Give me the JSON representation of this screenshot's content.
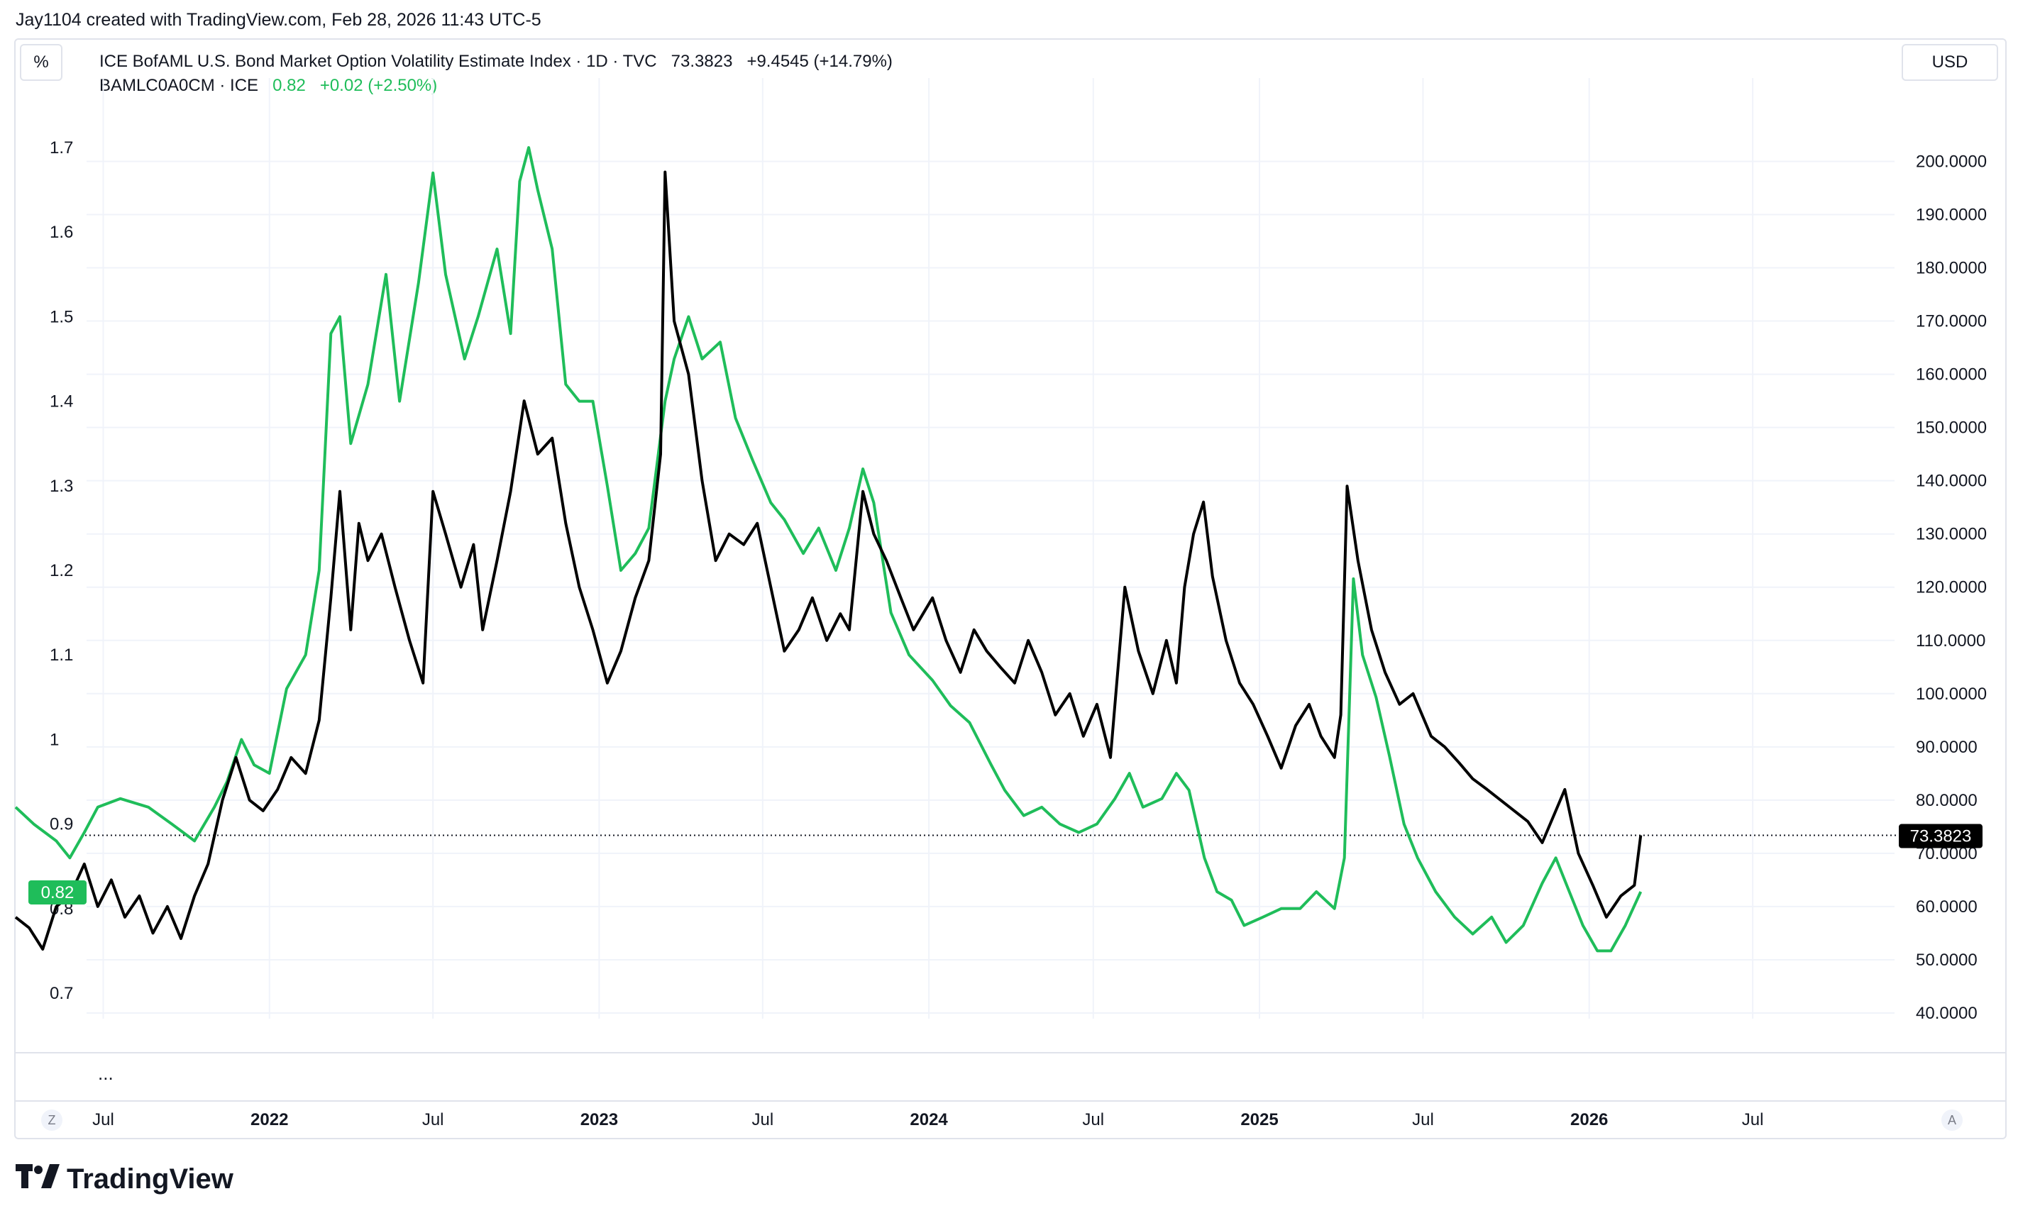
{
  "credit": "Jay1104 created with TradingView.com, Feb 28, 2026 11:43 UTC-5",
  "scale_mode_label": "%",
  "currency_label": "USD",
  "legend": {
    "move_main": {
      "name": "ICE BofAML U.S. Bond Market Option Volatility Estimate Index · 1D · TVC",
      "value": "73.3823",
      "change": "+9.4545 (+14.79%)"
    },
    "credit_spread": {
      "name": "BAMLC0A0CM · ICE",
      "value": "0.82",
      "change": "+0.02 (+2.50%)"
    }
  },
  "more_label": "...",
  "z_label": "Z",
  "a_label": "A",
  "brand": "TradingView",
  "chart_data": {
    "type": "line",
    "left_axis": {
      "ticks": [
        "1.7",
        "1.6",
        "1.5",
        "1.4",
        "1.3",
        "1.2",
        "1.1",
        "1",
        "0.9",
        "0.8",
        "0.7"
      ],
      "range": [
        0.65,
        1.75
      ]
    },
    "right_axis": {
      "ticks": [
        "200.0000",
        "190.0000",
        "180.0000",
        "170.0000",
        "160.0000",
        "150.0000",
        "140.0000",
        "130.0000",
        "120.0000",
        "110.0000",
        "100.0000",
        "90.0000",
        "80.0000",
        "70.0000",
        "60.0000",
        "50.0000",
        "40.0000"
      ],
      "range": [
        35,
        202
      ]
    },
    "x_ticks": [
      {
        "label": "Jul",
        "date": "2021-07-01",
        "bold": false
      },
      {
        "label": "2022",
        "date": "2022-01-01",
        "bold": true
      },
      {
        "label": "Jul",
        "date": "2022-07-01",
        "bold": false
      },
      {
        "label": "2023",
        "date": "2023-01-01",
        "bold": true
      },
      {
        "label": "Jul",
        "date": "2023-07-01",
        "bold": false
      },
      {
        "label": "2024",
        "date": "2024-01-01",
        "bold": true
      },
      {
        "label": "Jul",
        "date": "2024-07-01",
        "bold": false
      },
      {
        "label": "2025",
        "date": "2025-01-01",
        "bold": true
      },
      {
        "label": "Jul",
        "date": "2025-07-01",
        "bold": false
      },
      {
        "label": "2026",
        "date": "2026-01-01",
        "bold": true
      },
      {
        "label": "Jul",
        "date": "2026-07-01",
        "bold": false
      }
    ],
    "x_range": [
      "2021-03-26",
      "2026-12-05"
    ],
    "price_line_value": 73.3823,
    "last_label_right": "73.3823",
    "last_label_left": "0.82",
    "colors": {
      "move": "#000000",
      "spread": "#1fbd5a",
      "grid": "#f0f3fa"
    },
    "series": [
      {
        "name": "BAMLC0A0CM",
        "axis": "left",
        "color": "#1fbd5a",
        "points": [
          [
            "2021-03-26",
            0.92
          ],
          [
            "2021-04-15",
            0.9
          ],
          [
            "2021-05-10",
            0.88
          ],
          [
            "2021-05-25",
            0.86
          ],
          [
            "2021-06-10",
            0.89
          ],
          [
            "2021-06-25",
            0.92
          ],
          [
            "2021-07-20",
            0.93
          ],
          [
            "2021-08-20",
            0.92
          ],
          [
            "2021-09-15",
            0.9
          ],
          [
            "2021-10-10",
            0.88
          ],
          [
            "2021-11-01",
            0.92
          ],
          [
            "2021-11-15",
            0.95
          ],
          [
            "2021-12-01",
            1.0
          ],
          [
            "2021-12-15",
            0.97
          ],
          [
            "2022-01-01",
            0.96
          ],
          [
            "2022-01-20",
            1.06
          ],
          [
            "2022-02-10",
            1.1
          ],
          [
            "2022-02-25",
            1.2
          ],
          [
            "2022-03-10",
            1.48
          ],
          [
            "2022-03-20",
            1.5
          ],
          [
            "2022-04-01",
            1.35
          ],
          [
            "2022-04-20",
            1.42
          ],
          [
            "2022-05-10",
            1.55
          ],
          [
            "2022-05-25",
            1.4
          ],
          [
            "2022-06-15",
            1.54
          ],
          [
            "2022-07-01",
            1.67
          ],
          [
            "2022-07-15",
            1.55
          ],
          [
            "2022-08-05",
            1.45
          ],
          [
            "2022-08-20",
            1.5
          ],
          [
            "2022-09-10",
            1.58
          ],
          [
            "2022-09-25",
            1.48
          ],
          [
            "2022-10-05",
            1.66
          ],
          [
            "2022-10-15",
            1.7
          ],
          [
            "2022-10-25",
            1.65
          ],
          [
            "2022-11-10",
            1.58
          ],
          [
            "2022-11-25",
            1.42
          ],
          [
            "2022-12-10",
            1.4
          ],
          [
            "2022-12-25",
            1.4
          ],
          [
            "2023-01-10",
            1.3
          ],
          [
            "2023-01-25",
            1.2
          ],
          [
            "2023-02-10",
            1.22
          ],
          [
            "2023-02-25",
            1.25
          ],
          [
            "2023-03-15",
            1.4
          ],
          [
            "2023-03-25",
            1.45
          ],
          [
            "2023-04-10",
            1.5
          ],
          [
            "2023-04-25",
            1.45
          ],
          [
            "2023-05-15",
            1.47
          ],
          [
            "2023-06-01",
            1.38
          ],
          [
            "2023-06-20",
            1.33
          ],
          [
            "2023-07-10",
            1.28
          ],
          [
            "2023-07-25",
            1.26
          ],
          [
            "2023-08-15",
            1.22
          ],
          [
            "2023-09-01",
            1.25
          ],
          [
            "2023-09-20",
            1.2
          ],
          [
            "2023-10-05",
            1.25
          ],
          [
            "2023-10-20",
            1.32
          ],
          [
            "2023-11-01",
            1.28
          ],
          [
            "2023-11-20",
            1.15
          ],
          [
            "2023-12-10",
            1.1
          ],
          [
            "2024-01-05",
            1.07
          ],
          [
            "2024-01-25",
            1.04
          ],
          [
            "2024-02-15",
            1.02
          ],
          [
            "2024-03-10",
            0.97
          ],
          [
            "2024-03-25",
            0.94
          ],
          [
            "2024-04-15",
            0.91
          ],
          [
            "2024-05-05",
            0.92
          ],
          [
            "2024-05-25",
            0.9
          ],
          [
            "2024-06-15",
            0.89
          ],
          [
            "2024-07-05",
            0.9
          ],
          [
            "2024-07-25",
            0.93
          ],
          [
            "2024-08-10",
            0.96
          ],
          [
            "2024-08-25",
            0.92
          ],
          [
            "2024-09-15",
            0.93
          ],
          [
            "2024-10-01",
            0.96
          ],
          [
            "2024-10-15",
            0.94
          ],
          [
            "2024-11-01",
            0.86
          ],
          [
            "2024-11-15",
            0.82
          ],
          [
            "2024-12-01",
            0.81
          ],
          [
            "2024-12-15",
            0.78
          ],
          [
            "2025-01-05",
            0.79
          ],
          [
            "2025-01-25",
            0.8
          ],
          [
            "2025-02-15",
            0.8
          ],
          [
            "2025-03-05",
            0.82
          ],
          [
            "2025-03-25",
            0.8
          ],
          [
            "2025-04-05",
            0.86
          ],
          [
            "2025-04-15",
            1.19
          ],
          [
            "2025-04-25",
            1.1
          ],
          [
            "2025-05-10",
            1.05
          ],
          [
            "2025-05-25",
            0.98
          ],
          [
            "2025-06-10",
            0.9
          ],
          [
            "2025-06-25",
            0.86
          ],
          [
            "2025-07-15",
            0.82
          ],
          [
            "2025-08-05",
            0.79
          ],
          [
            "2025-08-25",
            0.77
          ],
          [
            "2025-09-15",
            0.79
          ],
          [
            "2025-10-01",
            0.76
          ],
          [
            "2025-10-20",
            0.78
          ],
          [
            "2025-11-10",
            0.83
          ],
          [
            "2025-11-25",
            0.86
          ],
          [
            "2025-12-10",
            0.82
          ],
          [
            "2025-12-25",
            0.78
          ],
          [
            "2026-01-10",
            0.75
          ],
          [
            "2026-01-25",
            0.75
          ],
          [
            "2026-02-10",
            0.78
          ],
          [
            "2026-02-27",
            0.82
          ]
        ]
      },
      {
        "name": "ICE BofAML U.S. Bond Market Option Volatility Estimate Index",
        "axis": "right",
        "color": "#000000",
        "points": [
          [
            "2021-03-26",
            58
          ],
          [
            "2021-04-10",
            56
          ],
          [
            "2021-04-25",
            52
          ],
          [
            "2021-05-10",
            60
          ],
          [
            "2021-05-25",
            62
          ],
          [
            "2021-06-10",
            68
          ],
          [
            "2021-06-25",
            60
          ],
          [
            "2021-07-10",
            65
          ],
          [
            "2021-07-25",
            58
          ],
          [
            "2021-08-10",
            62
          ],
          [
            "2021-08-25",
            55
          ],
          [
            "2021-09-10",
            60
          ],
          [
            "2021-09-25",
            54
          ],
          [
            "2021-10-10",
            62
          ],
          [
            "2021-10-25",
            68
          ],
          [
            "2021-11-10",
            80
          ],
          [
            "2021-11-25",
            88
          ],
          [
            "2021-12-10",
            80
          ],
          [
            "2021-12-25",
            78
          ],
          [
            "2022-01-10",
            82
          ],
          [
            "2022-01-25",
            88
          ],
          [
            "2022-02-10",
            85
          ],
          [
            "2022-02-25",
            95
          ],
          [
            "2022-03-10",
            118
          ],
          [
            "2022-03-20",
            138
          ],
          [
            "2022-04-01",
            112
          ],
          [
            "2022-04-10",
            132
          ],
          [
            "2022-04-20",
            125
          ],
          [
            "2022-05-05",
            130
          ],
          [
            "2022-05-20",
            120
          ],
          [
            "2022-06-05",
            110
          ],
          [
            "2022-06-20",
            102
          ],
          [
            "2022-07-01",
            138
          ],
          [
            "2022-07-15",
            130
          ],
          [
            "2022-08-01",
            120
          ],
          [
            "2022-08-15",
            128
          ],
          [
            "2022-08-25",
            112
          ],
          [
            "2022-09-10",
            125
          ],
          [
            "2022-09-25",
            138
          ],
          [
            "2022-10-10",
            155
          ],
          [
            "2022-10-25",
            145
          ],
          [
            "2022-11-10",
            148
          ],
          [
            "2022-11-25",
            132
          ],
          [
            "2022-12-10",
            120
          ],
          [
            "2022-12-25",
            112
          ],
          [
            "2023-01-10",
            102
          ],
          [
            "2023-01-25",
            108
          ],
          [
            "2023-02-10",
            118
          ],
          [
            "2023-02-25",
            125
          ],
          [
            "2023-03-10",
            145
          ],
          [
            "2023-03-15",
            198
          ],
          [
            "2023-03-25",
            170
          ],
          [
            "2023-04-10",
            160
          ],
          [
            "2023-04-25",
            140
          ],
          [
            "2023-05-10",
            125
          ],
          [
            "2023-05-25",
            130
          ],
          [
            "2023-06-10",
            128
          ],
          [
            "2023-06-25",
            132
          ],
          [
            "2023-07-10",
            120
          ],
          [
            "2023-07-25",
            108
          ],
          [
            "2023-08-10",
            112
          ],
          [
            "2023-08-25",
            118
          ],
          [
            "2023-09-10",
            110
          ],
          [
            "2023-09-25",
            115
          ],
          [
            "2023-10-05",
            112
          ],
          [
            "2023-10-20",
            138
          ],
          [
            "2023-11-01",
            130
          ],
          [
            "2023-11-15",
            125
          ],
          [
            "2023-12-01",
            118
          ],
          [
            "2023-12-15",
            112
          ],
          [
            "2024-01-05",
            118
          ],
          [
            "2024-01-20",
            110
          ],
          [
            "2024-02-05",
            104
          ],
          [
            "2024-02-20",
            112
          ],
          [
            "2024-03-05",
            108
          ],
          [
            "2024-03-20",
            105
          ],
          [
            "2024-04-05",
            102
          ],
          [
            "2024-04-20",
            110
          ],
          [
            "2024-05-05",
            104
          ],
          [
            "2024-05-20",
            96
          ],
          [
            "2024-06-05",
            100
          ],
          [
            "2024-06-20",
            92
          ],
          [
            "2024-07-05",
            98
          ],
          [
            "2024-07-20",
            88
          ],
          [
            "2024-08-05",
            120
          ],
          [
            "2024-08-20",
            108
          ],
          [
            "2024-09-05",
            100
          ],
          [
            "2024-09-20",
            110
          ],
          [
            "2024-10-01",
            102
          ],
          [
            "2024-10-10",
            120
          ],
          [
            "2024-10-20",
            130
          ],
          [
            "2024-10-31",
            136
          ],
          [
            "2024-11-10",
            122
          ],
          [
            "2024-11-25",
            110
          ],
          [
            "2024-12-10",
            102
          ],
          [
            "2024-12-25",
            98
          ],
          [
            "2025-01-10",
            92
          ],
          [
            "2025-01-25",
            86
          ],
          [
            "2025-02-10",
            94
          ],
          [
            "2025-02-25",
            98
          ],
          [
            "2025-03-10",
            92
          ],
          [
            "2025-03-25",
            88
          ],
          [
            "2025-04-01",
            96
          ],
          [
            "2025-04-08",
            139
          ],
          [
            "2025-04-20",
            125
          ],
          [
            "2025-05-05",
            112
          ],
          [
            "2025-05-20",
            104
          ],
          [
            "2025-06-05",
            98
          ],
          [
            "2025-06-20",
            100
          ],
          [
            "2025-07-10",
            92
          ],
          [
            "2025-07-25",
            90
          ],
          [
            "2025-08-10",
            87
          ],
          [
            "2025-08-25",
            84
          ],
          [
            "2025-09-10",
            82
          ],
          [
            "2025-09-25",
            80
          ],
          [
            "2025-10-10",
            78
          ],
          [
            "2025-10-25",
            76
          ],
          [
            "2025-11-10",
            72
          ],
          [
            "2025-11-25",
            78
          ],
          [
            "2025-12-05",
            82
          ],
          [
            "2025-12-20",
            70
          ],
          [
            "2026-01-05",
            64
          ],
          [
            "2026-01-20",
            58
          ],
          [
            "2026-02-05",
            62
          ],
          [
            "2026-02-20",
            64
          ],
          [
            "2026-02-27",
            73.38
          ]
        ]
      }
    ]
  }
}
